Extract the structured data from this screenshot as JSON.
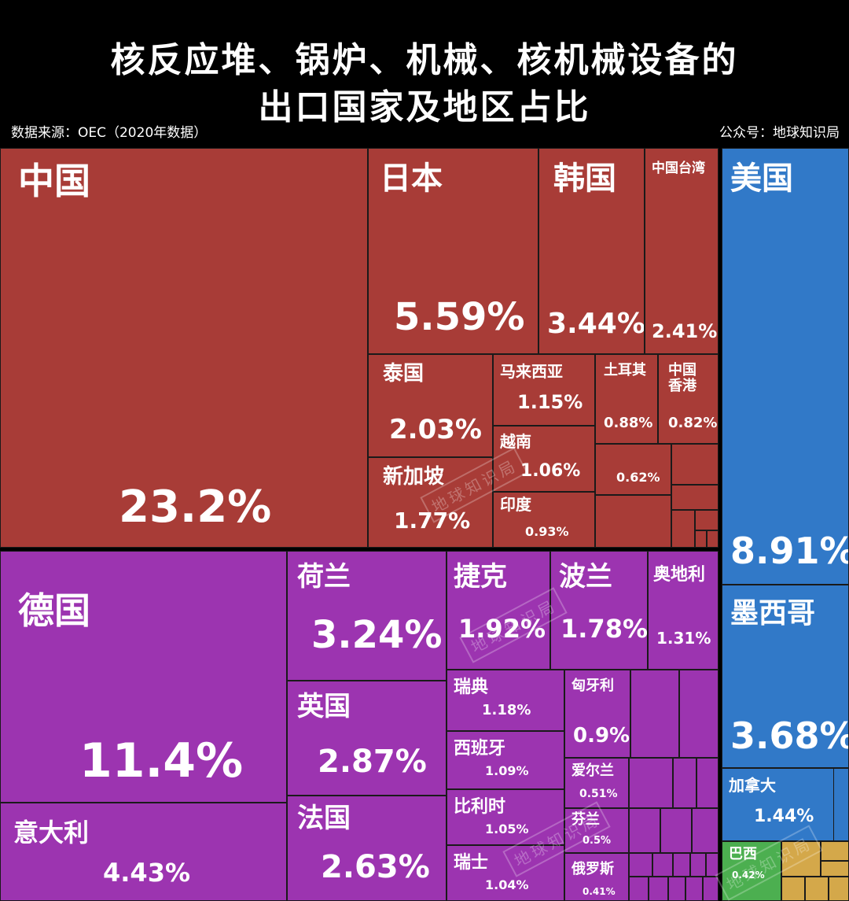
{
  "header": {
    "title_line1": "核反应堆、锅炉、机械、核机械设备的",
    "title_line2": "出口国家及地区占比",
    "source": "数据来源：OEC（2020年数据）",
    "credit": "公众号：地球知识局"
  },
  "watermark": "地球知识局",
  "colors": {
    "asia": "#a83c37",
    "europe": "#9c34b0",
    "americas": "#3179c8",
    "south_america": "#4caf50",
    "other": "#d4a84a",
    "border": "#1a1a1a"
  },
  "chart_data": {
    "type": "treemap",
    "title": "核反应堆、锅炉、机械、核机械设备的出口国家及地区占比",
    "unit": "%",
    "groups": [
      {
        "color": "asia",
        "items": [
          {
            "name": "中国",
            "value": 23.2,
            "label": "23.2%"
          },
          {
            "name": "日本",
            "value": 5.59,
            "label": "5.59%"
          },
          {
            "name": "韩国",
            "value": 3.44,
            "label": "3.44%"
          },
          {
            "name": "中国台湾",
            "value": 2.41,
            "label": "2.41%"
          },
          {
            "name": "泰国",
            "value": 2.03,
            "label": "2.03%"
          },
          {
            "name": "新加坡",
            "value": 1.77,
            "label": "1.77%"
          },
          {
            "name": "马来西亚",
            "value": 1.15,
            "label": "1.15%"
          },
          {
            "name": "越南",
            "value": 1.06,
            "label": "1.06%"
          },
          {
            "name": "印度",
            "value": 0.93,
            "label": "0.93%"
          },
          {
            "name": "土耳其",
            "value": 0.88,
            "label": "0.88%"
          },
          {
            "name": "中国香港",
            "value": 0.82,
            "label": "0.82%"
          },
          {
            "name": "",
            "value": 0.62,
            "label": "0.62%"
          }
        ]
      },
      {
        "color": "europe",
        "items": [
          {
            "name": "德国",
            "value": 11.4,
            "label": "11.4%"
          },
          {
            "name": "意大利",
            "value": 4.43,
            "label": "4.43%"
          },
          {
            "name": "荷兰",
            "value": 3.24,
            "label": "3.24%"
          },
          {
            "name": "英国",
            "value": 2.87,
            "label": "2.87%"
          },
          {
            "name": "法国",
            "value": 2.63,
            "label": "2.63%"
          },
          {
            "name": "捷克",
            "value": 1.92,
            "label": "1.92%"
          },
          {
            "name": "波兰",
            "value": 1.78,
            "label": "1.78%"
          },
          {
            "name": "奥地利",
            "value": 1.31,
            "label": "1.31%"
          },
          {
            "name": "瑞典",
            "value": 1.18,
            "label": "1.18%"
          },
          {
            "name": "西班牙",
            "value": 1.09,
            "label": "1.09%"
          },
          {
            "name": "比利时",
            "value": 1.05,
            "label": "1.05%"
          },
          {
            "name": "瑞士",
            "value": 1.04,
            "label": "1.04%"
          },
          {
            "name": "匈牙利",
            "value": 0.9,
            "label": "0.9%"
          },
          {
            "name": "爱尔兰",
            "value": 0.51,
            "label": "0.51%"
          },
          {
            "name": "芬兰",
            "value": 0.5,
            "label": "0.5%"
          },
          {
            "name": "俄罗斯",
            "value": 0.41,
            "label": "0.41%"
          }
        ]
      },
      {
        "color": "americas",
        "items": [
          {
            "name": "美国",
            "value": 8.91,
            "label": "8.91%"
          },
          {
            "name": "墨西哥",
            "value": 3.68,
            "label": "3.68%"
          },
          {
            "name": "加拿大",
            "value": 1.44,
            "label": "1.44%"
          }
        ]
      },
      {
        "color": "south_america",
        "items": [
          {
            "name": "巴西",
            "value": 0.42,
            "label": "0.42%"
          }
        ]
      }
    ]
  }
}
